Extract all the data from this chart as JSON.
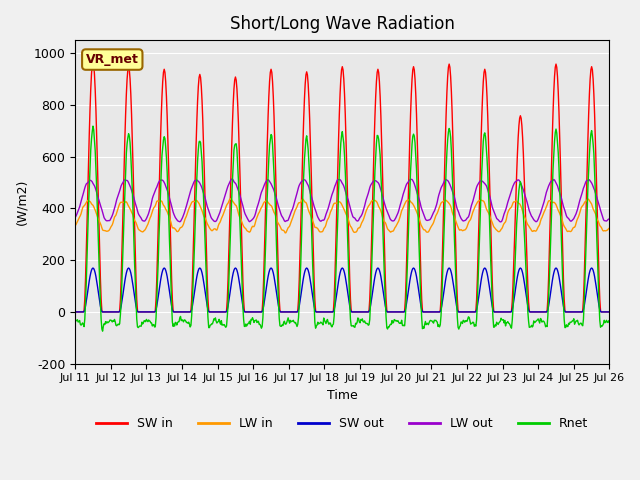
{
  "title": "Short/Long Wave Radiation",
  "xlabel": "Time",
  "ylabel": "(W/m2)",
  "ylim": [
    -200,
    1050
  ],
  "yticks": [
    -200,
    0,
    200,
    400,
    600,
    800,
    1000
  ],
  "colors": {
    "SW_in": "#ff0000",
    "LW_in": "#ff9900",
    "SW_out": "#0000cc",
    "LW_out": "#9900cc",
    "Rnet": "#00cc00"
  },
  "legend_labels": [
    "SW in",
    "LW in",
    "SW out",
    "LW out",
    "Rnet"
  ],
  "station_label": "VR_met",
  "xtick_labels": [
    "Jul 11",
    "Jul 12",
    "Jul 13",
    "Jul 14",
    "Jul 15",
    "Jul 16",
    "Jul 17",
    "Jul 18",
    "Jul 19",
    "Jul 20",
    "Jul 21",
    "Jul 22",
    "Jul 23",
    "Jul 24",
    "Jul 25",
    "Jul 26"
  ],
  "n_days": 15,
  "background_color": "#e8e8e8",
  "dt_hours": 0.5,
  "peak_SW": [
    970,
    950,
    940,
    920,
    910,
    940,
    930,
    950,
    940,
    950,
    960,
    940,
    760,
    960,
    950
  ]
}
